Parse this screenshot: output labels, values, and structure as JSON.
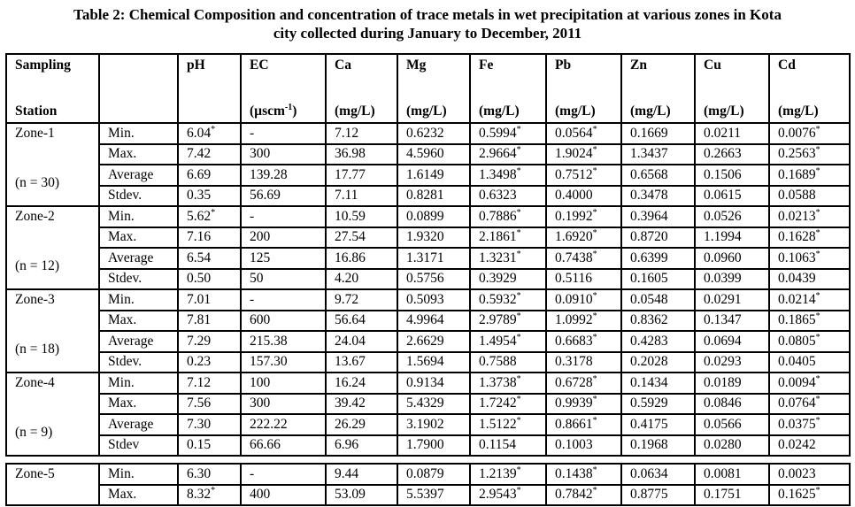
{
  "title": {
    "line1": "Table 2: Chemical Composition and concentration of trace metals in wet precipitation at various zones in Kota",
    "line2": "city collected during January to December, 2011"
  },
  "table": {
    "corner_header": {
      "line1": "Sampling",
      "line2": "Station"
    },
    "stat_header": "",
    "columns": [
      {
        "name": "pH",
        "unit": ""
      },
      {
        "name": "EC",
        "unit": {
          "pre": "(µscm",
          "sup": "-1",
          "post": ")"
        }
      },
      {
        "name": "Ca",
        "unit": "(mg/L)"
      },
      {
        "name": "Mg",
        "unit": "(mg/L)"
      },
      {
        "name": "Fe",
        "unit": "(mg/L)"
      },
      {
        "name": "Pb",
        "unit": "(mg/L)"
      },
      {
        "name": "Zn",
        "unit": "(mg/L)"
      },
      {
        "name": "Cu",
        "unit": "(mg/L)"
      },
      {
        "name": "Cd",
        "unit": "(mg/L)"
      }
    ],
    "zones": [
      {
        "zone": "Zone-1",
        "n": "(n = 30)",
        "rows": [
          {
            "stat": "Min.",
            "values": [
              "6.04*",
              "-",
              "7.12",
              "0.6232",
              "0.5994*",
              "0.0564*",
              "0.1669",
              "0.0211",
              "0.0076*"
            ]
          },
          {
            "stat": "Max.",
            "values": [
              "7.42",
              "300",
              "36.98",
              "4.5960",
              "2.9664*",
              "1.9024*",
              "1.3437",
              "0.2663",
              "0.2563*"
            ]
          },
          {
            "stat": "Average",
            "values": [
              "6.69",
              "139.28",
              "17.77",
              "1.6149",
              "1.3498*",
              "0.7512*",
              "0.6568",
              "0.1506",
              "0.1689*"
            ]
          },
          {
            "stat": "Stdev.",
            "values": [
              "0.35",
              "56.69",
              "7.11",
              "0.8281",
              "0.6323",
              "0.4000",
              "0.3478",
              "0.0615",
              "0.0588"
            ]
          }
        ]
      },
      {
        "zone": "Zone-2",
        "n": "(n = 12)",
        "rows": [
          {
            "stat": "Min.",
            "values": [
              "5.62*",
              "-",
              "10.59",
              "0.0899",
              "0.7886*",
              "0.1992*",
              "0.3964",
              "0.0526",
              "0.0213*"
            ]
          },
          {
            "stat": "Max.",
            "values": [
              "7.16",
              "200",
              "27.54",
              "1.9320",
              "2.1861*",
              "1.6920*",
              "0.8720",
              "1.1994",
              "0.1628*"
            ]
          },
          {
            "stat": "Average",
            "values": [
              "6.54",
              "125",
              "16.86",
              "1.3171",
              "1.3231*",
              "0.7438*",
              "0.6399",
              "0.0960",
              "0.1063*"
            ]
          },
          {
            "stat": "Stdev.",
            "values": [
              "0.50",
              "50",
              "4.20",
              "0.5756",
              "0.3929",
              "0.5116",
              "0.1605",
              "0.0399",
              "0.0439"
            ]
          }
        ]
      },
      {
        "zone": "Zone-3",
        "n": "(n = 18)",
        "rows": [
          {
            "stat": "Min.",
            "values": [
              "7.01",
              "-",
              "9.72",
              "0.5093",
              "0.5932*",
              "0.0910*",
              "0.0548",
              "0.0291",
              "0.0214*"
            ]
          },
          {
            "stat": "Max.",
            "values": [
              "7.81",
              "600",
              "56.64",
              "4.9964",
              "2.9789*",
              "1.0992*",
              "0.8362",
              "0.1347",
              "0.1865*"
            ]
          },
          {
            "stat": "Average",
            "values": [
              "7.29",
              "215.38",
              "24.04",
              "2.6629",
              "1.4954*",
              "0.6683*",
              "0.4283",
              "0.0694",
              "0.0805*"
            ]
          },
          {
            "stat": "Stdev.",
            "values": [
              "0.23",
              "157.30",
              "13.67",
              "1.5694",
              "0.7588",
              "0.3178",
              "0.2028",
              "0.0293",
              "0.0405"
            ]
          }
        ]
      },
      {
        "zone": "Zone-4",
        "n": "(n = 9)",
        "rows": [
          {
            "stat": "Min.",
            "values": [
              "7.12",
              "100",
              "16.24",
              "0.9134",
              "1.3738*",
              "0.6728*",
              "0.1434",
              "0.0189",
              "0.0094*"
            ]
          },
          {
            "stat": "Max.",
            "values": [
              "7.56",
              "300",
              "39.42",
              "5.4329",
              "1.7242*",
              "0.9939*",
              "0.5929",
              "0.0846",
              "0.0764*"
            ]
          },
          {
            "stat": "Average",
            "values": [
              "7.30",
              "222.22",
              "26.29",
              "3.1902",
              "1.5122*",
              "0.8661*",
              "0.4175",
              "0.0566",
              "0.0375*"
            ]
          },
          {
            "stat": "Stdev",
            "values": [
              "0.15",
              "66.66",
              "6.96",
              "1.7900",
              "0.1154",
              "0.1003",
              "0.1968",
              "0.0280",
              "0.0242"
            ]
          }
        ]
      },
      {
        "zone": "Zone-5",
        "rows": [
          {
            "stat": "Min.",
            "values": [
              "6.30",
              "-",
              "9.44",
              "0.0879",
              "1.2139*",
              "0.1438*",
              "0.0634",
              "0.0081",
              "0.0023"
            ]
          },
          {
            "stat": "Max.",
            "values": [
              "8.32*",
              "400",
              "53.09",
              "5.5397",
              "2.9543*",
              "0.7842*",
              "0.8775",
              "0.1751",
              "0.1625*"
            ]
          }
        ]
      }
    ]
  }
}
